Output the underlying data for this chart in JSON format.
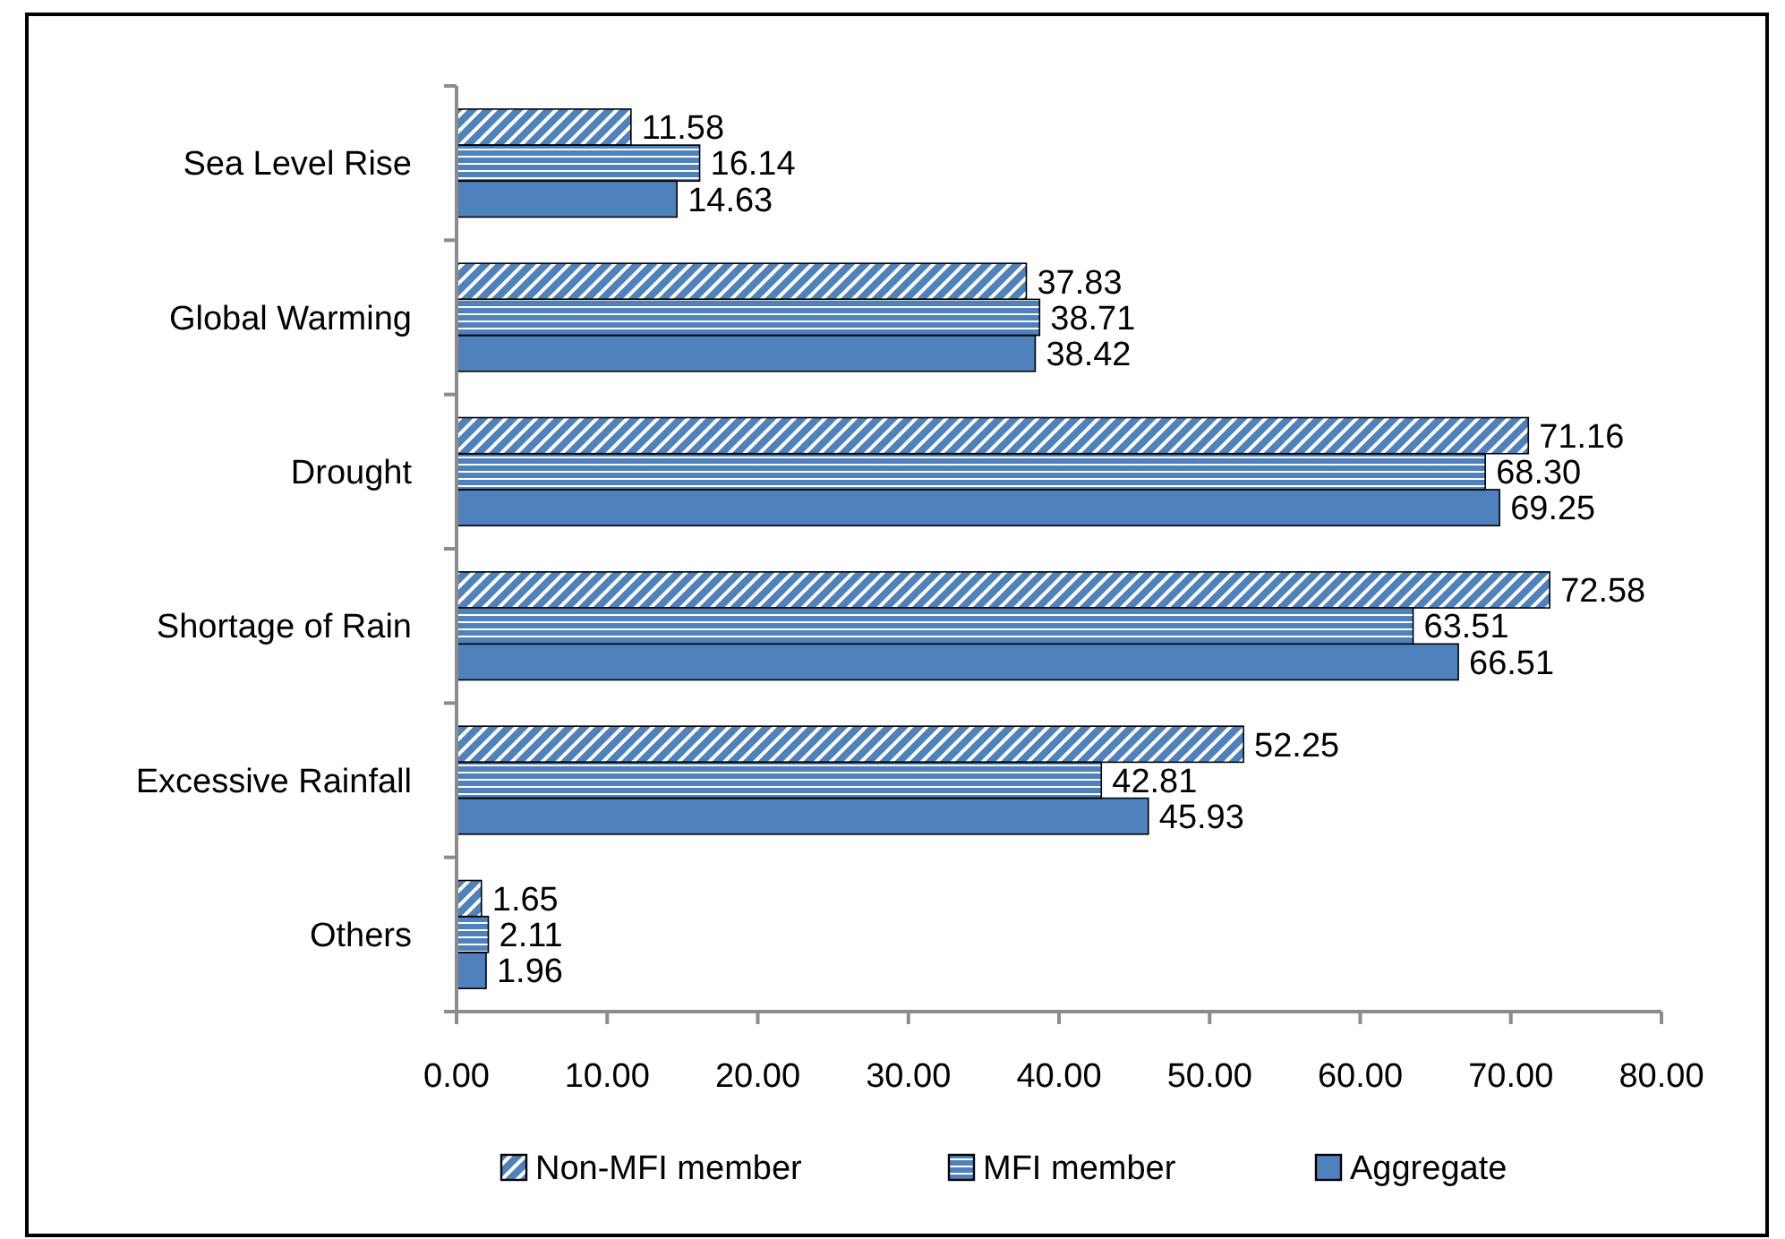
{
  "chart_data": {
    "type": "bar",
    "orientation": "horizontal",
    "categories": [
      "Sea Level Rise",
      "Global Warming",
      "Drought",
      "Shortage of Rain",
      "Excessive Rainfall",
      "Others"
    ],
    "series": [
      {
        "name": "Non-MFI member",
        "color": "#4f81bd",
        "values": [
          11.58,
          37.83,
          71.16,
          72.58,
          52.25,
          1.65
        ],
        "value_labels": [
          "11.58",
          "37.83",
          "71.16",
          "72.58",
          "52.25",
          "1.65"
        ]
      },
      {
        "name": "MFI member",
        "color": "#4f81bd",
        "values": [
          16.14,
          38.71,
          68.3,
          63.51,
          42.81,
          2.11
        ],
        "value_labels": [
          "16.14",
          "38.71",
          "68.30",
          "63.51",
          "42.81",
          "2.11"
        ]
      },
      {
        "name": "Aggregate",
        "color": "#4f81bd",
        "values": [
          14.63,
          38.42,
          69.25,
          66.51,
          45.93,
          1.96
        ],
        "value_labels": [
          "14.63",
          "38.42",
          "69.25",
          "66.51",
          "45.93",
          "1.96"
        ]
      }
    ],
    "xlim": [
      0,
      80
    ],
    "xticks": [
      {
        "value": 0,
        "label": "0.00"
      },
      {
        "value": 10,
        "label": "10.00"
      },
      {
        "value": 20,
        "label": "20.00"
      },
      {
        "value": 30,
        "label": "30.00"
      },
      {
        "value": 40,
        "label": "40.00"
      },
      {
        "value": 50,
        "label": "50.00"
      },
      {
        "value": 60,
        "label": "60.00"
      },
      {
        "value": 70,
        "label": "70.00"
      },
      {
        "value": 80,
        "label": "80.00"
      }
    ],
    "legend": "bottom",
    "grid": false
  }
}
